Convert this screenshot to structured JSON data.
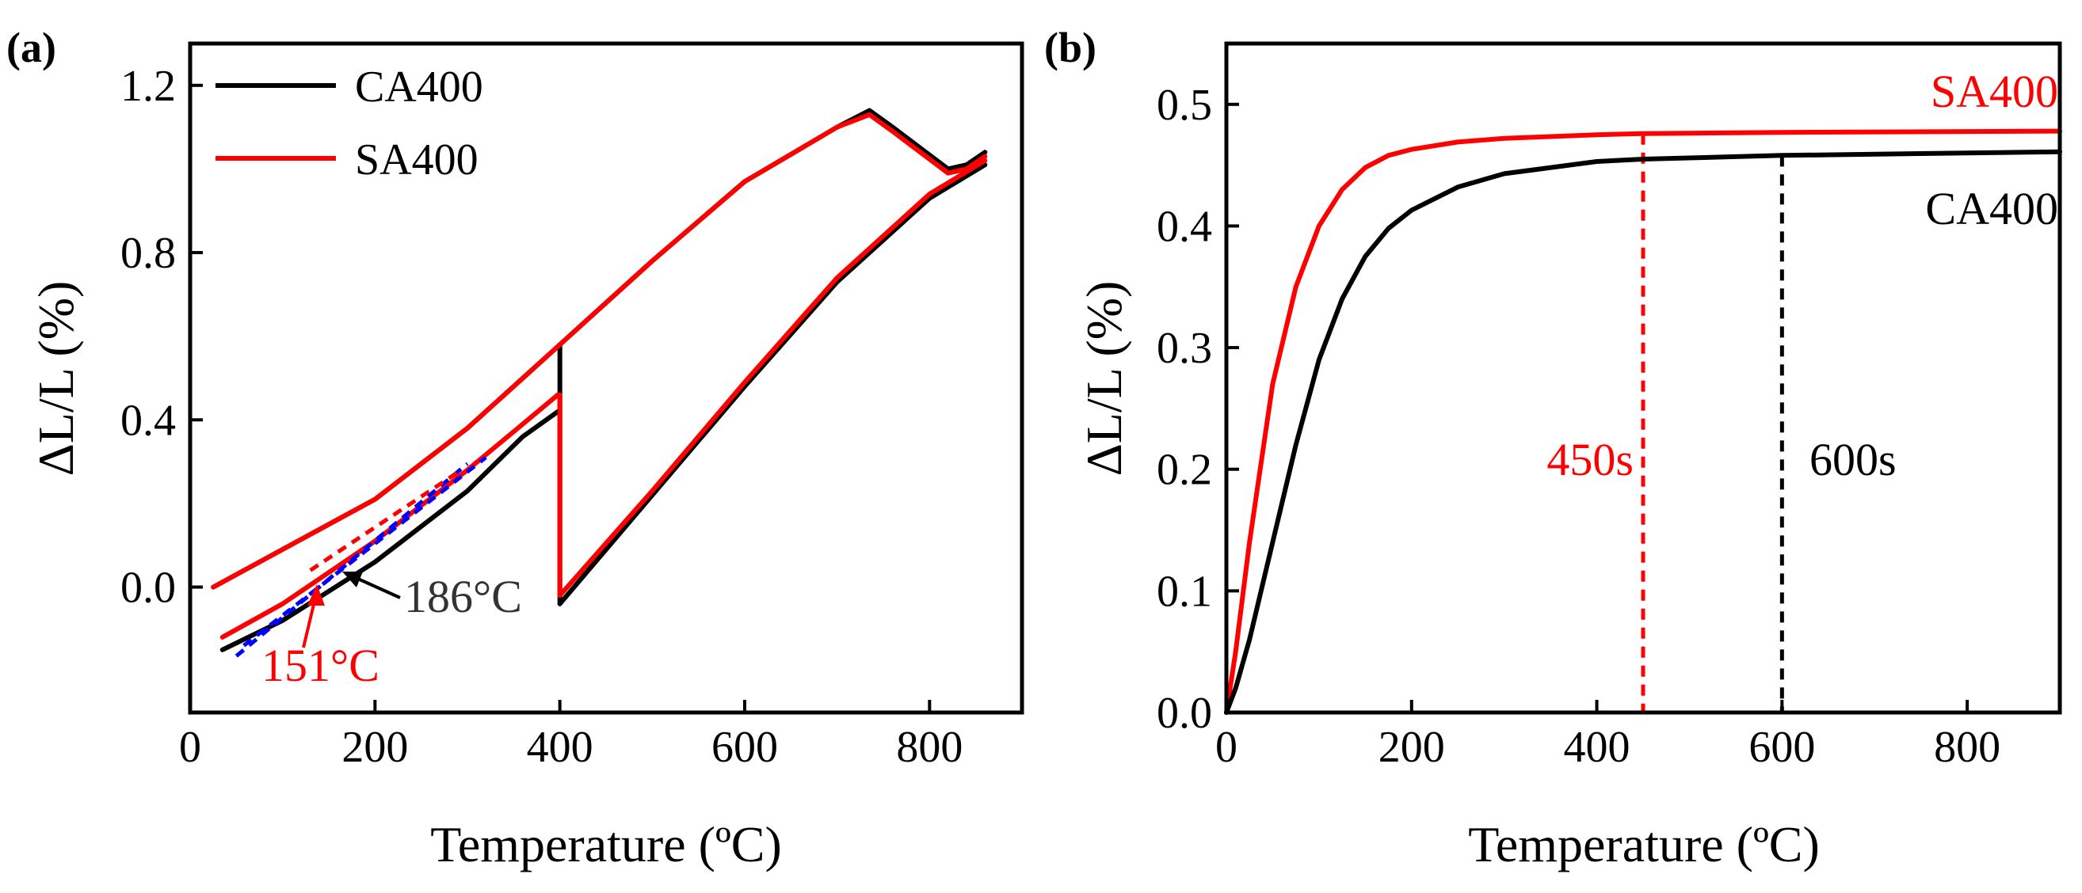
{
  "chart_data": [
    {
      "panel": "(a)",
      "type": "line",
      "xlabel": "Temperature (ºC)",
      "ylabel": "ΔL/L (%)",
      "xlim": [
        0,
        900
      ],
      "ylim": [
        -0.3,
        1.3
      ],
      "xticks": [
        0,
        200,
        400,
        600,
        800
      ],
      "yticks": [
        0.0,
        0.4,
        0.8,
        1.2
      ],
      "xtick_labels": [
        "0",
        "200",
        "400",
        "600",
        "800"
      ],
      "ytick_labels": [
        "0.0",
        "0.4",
        "0.8",
        "1.2"
      ],
      "legend": {
        "placement": "top-left",
        "entries": [
          "CA400",
          "SA400"
        ]
      },
      "series": [
        {
          "name": "CA400",
          "color": "#000000",
          "segments": [
            {
              "x": [
                25,
                100,
                200,
                300,
                400,
                500,
                600,
                700,
                735,
                760,
                790,
                820,
                840,
                860
              ],
              "y": [
                0.0,
                0.09,
                0.21,
                0.38,
                0.58,
                0.78,
                0.97,
                1.1,
                1.14,
                1.1,
                1.05,
                1.0,
                1.01,
                1.04
              ]
            },
            {
              "x": [
                400,
                400
              ],
              "y": [
                -0.04,
                0.58
              ]
            },
            {
              "x": [
                400,
                500,
                600,
                700,
                800,
                860
              ],
              "y": [
                -0.04,
                0.22,
                0.48,
                0.73,
                0.93,
                1.01
              ]
            },
            {
              "x": [
                35,
                100,
                200,
                300,
                360,
                398
              ],
              "y": [
                -0.15,
                -0.08,
                0.06,
                0.23,
                0.36,
                0.42
              ]
            }
          ]
        },
        {
          "name": "SA400",
          "color": "#ff0000",
          "segments": [
            {
              "x": [
                25,
                100,
                200,
                300,
                400,
                500,
                600,
                700,
                735,
                760,
                790,
                820,
                840,
                860
              ],
              "y": [
                0.0,
                0.09,
                0.21,
                0.38,
                0.58,
                0.78,
                0.97,
                1.1,
                1.13,
                1.09,
                1.04,
                0.99,
                1.0,
                1.03
              ]
            },
            {
              "x": [
                400,
                400
              ],
              "y": [
                -0.02,
                0.46
              ]
            },
            {
              "x": [
                400,
                500,
                600,
                700,
                800,
                860
              ],
              "y": [
                -0.02,
                0.23,
                0.49,
                0.74,
                0.94,
                1.02
              ]
            },
            {
              "x": [
                35,
                100,
                200,
                300,
                360,
                398
              ],
              "y": [
                -0.12,
                -0.04,
                0.11,
                0.28,
                0.39,
                0.46
              ]
            }
          ]
        },
        {
          "color": "#0000ff",
          "style": "dashed",
          "segments": [
            {
              "x": [
                50,
                300
              ],
              "y": [
                -0.165,
                0.295
              ]
            },
            {
              "x": [
                58,
                320
              ],
              "y": [
                -0.14,
                0.31
              ]
            }
          ]
        },
        {
          "color": "#ff0000",
          "style": "dashed",
          "segments": [
            {
              "x": [
                130,
                290
              ],
              "y": [
                0.04,
                0.275
              ]
            }
          ]
        }
      ],
      "annotations": [
        {
          "text": "186°C",
          "color": "#000000",
          "x": 300,
          "y": -0.02,
          "arrow_to": [
            175,
            0.03
          ]
        },
        {
          "text": "151°C",
          "color": "#ff0000",
          "x": 225,
          "y": -0.195,
          "arrow_to": [
            140,
            0.04
          ]
        }
      ]
    },
    {
      "panel": "(b)",
      "type": "line",
      "xlabel": "Temperature (ºC)",
      "ylabel": "ΔL/L (%)",
      "xlim": [
        0,
        900
      ],
      "ylim": [
        0,
        0.55
      ],
      "xticks": [
        0,
        200,
        400,
        600,
        800
      ],
      "yticks": [
        0.0,
        0.1,
        0.2,
        0.3,
        0.4,
        0.5
      ],
      "xtick_labels": [
        "0",
        "200",
        "400",
        "600",
        "800"
      ],
      "ytick_labels": [
        "0.0",
        "0.1",
        "0.2",
        "0.3",
        "0.4",
        "0.5"
      ],
      "series": [
        {
          "name": "SA400",
          "color": "#ff0000",
          "x": [
            0,
            10,
            25,
            50,
            75,
            100,
            125,
            150,
            175,
            200,
            250,
            300,
            400,
            450,
            600,
            900
          ],
          "y": [
            0.0,
            0.05,
            0.14,
            0.27,
            0.35,
            0.4,
            0.43,
            0.448,
            0.458,
            0.463,
            0.469,
            0.472,
            0.475,
            0.476,
            0.477,
            0.478
          ]
        },
        {
          "name": "CA400",
          "color": "#000000",
          "x": [
            0,
            10,
            25,
            50,
            75,
            100,
            125,
            150,
            175,
            200,
            250,
            300,
            400,
            450,
            600,
            900
          ],
          "y": [
            0.0,
            0.02,
            0.06,
            0.14,
            0.22,
            0.29,
            0.34,
            0.375,
            0.398,
            0.413,
            0.432,
            0.443,
            0.453,
            0.455,
            0.458,
            0.461
          ]
        }
      ],
      "vlines": [
        {
          "x": 450,
          "color": "#ff0000",
          "style": "dashed",
          "label": "450s"
        },
        {
          "x": 600,
          "color": "#000000",
          "style": "dashed",
          "label": "600s"
        }
      ],
      "annotations": [
        {
          "text": "SA400",
          "color": "#ff0000"
        },
        {
          "text": "CA400",
          "color": "#000000"
        }
      ]
    }
  ]
}
